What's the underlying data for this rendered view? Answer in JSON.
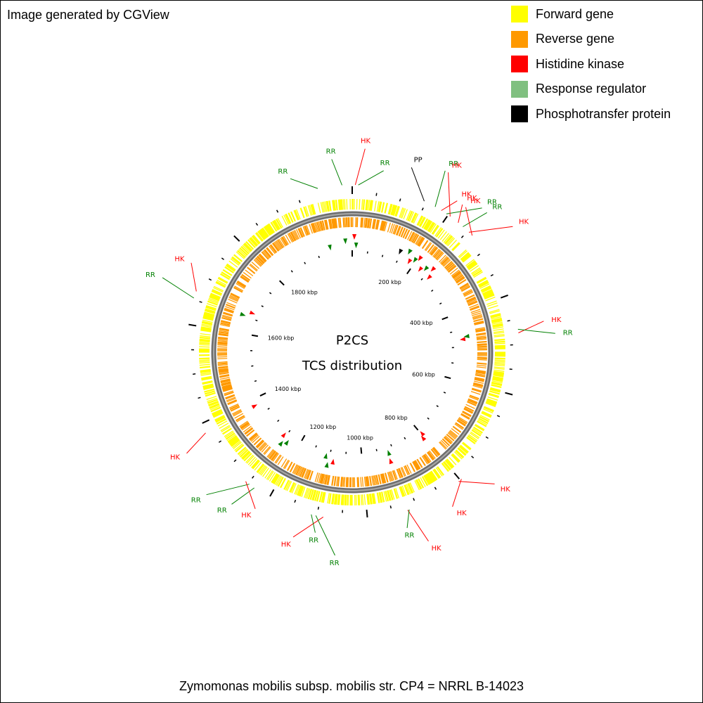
{
  "credit": "Image generated by CGView",
  "caption": "Zymomonas mobilis subsp. mobilis str. CP4 = NRRL B-14023",
  "colors": {
    "forward_gene": "#ffff00",
    "reverse_gene": "#ff9900",
    "histidine_kinase": "#ff0000",
    "response_regulator": "#008000",
    "response_regulator_legend": "#80c080",
    "phosphotransfer_protein": "#000000",
    "backbone": "#808080"
  },
  "legend": [
    {
      "label": "Forward gene",
      "color": "#ffff00"
    },
    {
      "label": "Reverse gene",
      "color": "#ff9900"
    },
    {
      "label": "Histidine kinase",
      "color": "#ff0000"
    },
    {
      "label": "Response regulator",
      "color": "#80c080"
    },
    {
      "label": "Phosphotransfer protein",
      "color": "#000000"
    }
  ],
  "center": {
    "title": "P2CS",
    "subtitle": "TCS distribution"
  },
  "genome": {
    "length_kbp": 2060,
    "tick_labels": [
      "200 kbp",
      "400 kbp",
      "600 kbp",
      "800 kbp",
      "1000 kbp",
      "1200 kbp",
      "1400 kbp",
      "1600 kbp",
      "1800 kbp"
    ],
    "tick_values_kbp": [
      200,
      400,
      600,
      800,
      1000,
      1200,
      1400,
      1600,
      1800
    ]
  },
  "features": [
    {
      "type": "RR",
      "label": "RR",
      "pos_kbp": 1992
    },
    {
      "type": "RR",
      "label": "RR",
      "pos_kbp": 2040
    },
    {
      "type": "HK",
      "label": "HK",
      "pos_kbp": 6
    },
    {
      "type": "RR",
      "label": "RR",
      "pos_kbp": 12
    },
    {
      "type": "PP",
      "label": "PP",
      "pos_kbp": 146
    },
    {
      "type": "RR",
      "label": "RR",
      "pos_kbp": 170
    },
    {
      "type": "HK",
      "label": "HK",
      "pos_kbp": 184
    },
    {
      "type": "RR",
      "label": "RR",
      "pos_kbp": 196
    },
    {
      "type": "HK",
      "label": "HK",
      "pos_kbp": 205
    },
    {
      "type": "HK",
      "label": "HK",
      "pos_kbp": 225
    },
    {
      "type": "RR",
      "label": "RR",
      "pos_kbp": 237
    },
    {
      "type": "HK",
      "label": "HK",
      "pos_kbp": 253
    },
    {
      "type": "HK",
      "label": "HK",
      "pos_kbp": 262
    },
    {
      "type": "HK",
      "label": "HK",
      "pos_kbp": 477
    },
    {
      "type": "RR",
      "label": "RR",
      "pos_kbp": 470
    },
    {
      "type": "HK",
      "label": "HK",
      "pos_kbp": 797
    },
    {
      "type": "HK",
      "label": "HK",
      "pos_kbp": 804
    },
    {
      "type": "HK",
      "label": "HK",
      "pos_kbp": 919
    },
    {
      "type": "RR",
      "label": "RR",
      "pos_kbp": 916
    },
    {
      "type": "HK",
      "label": "HK",
      "pos_kbp": 1087
    },
    {
      "type": "RR",
      "label": "RR",
      "pos_kbp": 1102
    },
    {
      "type": "RR",
      "label": "RR",
      "pos_kbp": 1111
    },
    {
      "type": "RR",
      "label": "RR",
      "pos_kbp": 1235
    },
    {
      "type": "RR",
      "label": "RR",
      "pos_kbp": 1247
    },
    {
      "type": "HK",
      "label": "HK",
      "pos_kbp": 1256
    },
    {
      "type": "HK",
      "label": "HK",
      "pos_kbp": 1380
    },
    {
      "type": "RR",
      "label": "RR",
      "pos_kbp": 1653
    },
    {
      "type": "HK",
      "label": "HK",
      "pos_kbp": 1667
    }
  ]
}
